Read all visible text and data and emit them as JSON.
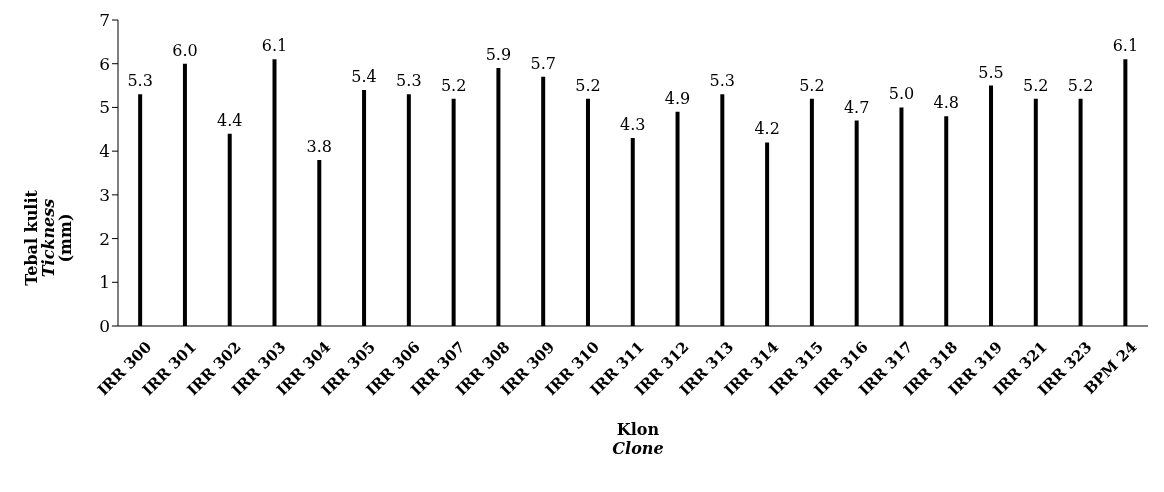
{
  "chart_data": {
    "type": "bar",
    "xlabel": "Klon\nClone",
    "ylabel": "Tebal kulit\nTickness\n(mm)",
    "categories": [
      "IRR 300",
      "IRR 301",
      "IRR 302",
      "IRR 303",
      "IRR 304",
      "IRR 305",
      "IRR 306",
      "IRR 307",
      "IRR 308",
      "IRR 309",
      "IRR 310",
      "IRR 311",
      "IRR 312",
      "IRR 313",
      "IRR 314",
      "IRR 315",
      "IRR 316",
      "IRR 317",
      "IRR 318",
      "IRR 319",
      "IRR 321",
      "IRR 323",
      "BPM 24"
    ],
    "values": [
      5.3,
      6.0,
      4.4,
      6.1,
      3.8,
      5.4,
      5.3,
      5.2,
      5.9,
      5.7,
      5.2,
      4.3,
      4.9,
      5.3,
      4.2,
      5.2,
      4.7,
      5.0,
      4.8,
      5.5,
      5.2,
      5.2,
      6.1
    ],
    "value_labels": [
      "5.3",
      "6.0",
      "4.4",
      "6.1",
      "3.8",
      "5.4",
      "5.3",
      "5.2",
      "5.9",
      "5.7",
      "5.2",
      "4.3",
      "4.9",
      "5.3",
      "4.2",
      "5.2",
      "4.7",
      "5.0",
      "4.8",
      "5.5",
      "5.2",
      "5.2",
      "6.1"
    ],
    "color": "#000000",
    "ylim": [
      0,
      7
    ],
    "yticks": [
      0,
      1,
      2,
      3,
      4,
      5,
      6,
      7
    ],
    "grid": false,
    "legend": false
  }
}
